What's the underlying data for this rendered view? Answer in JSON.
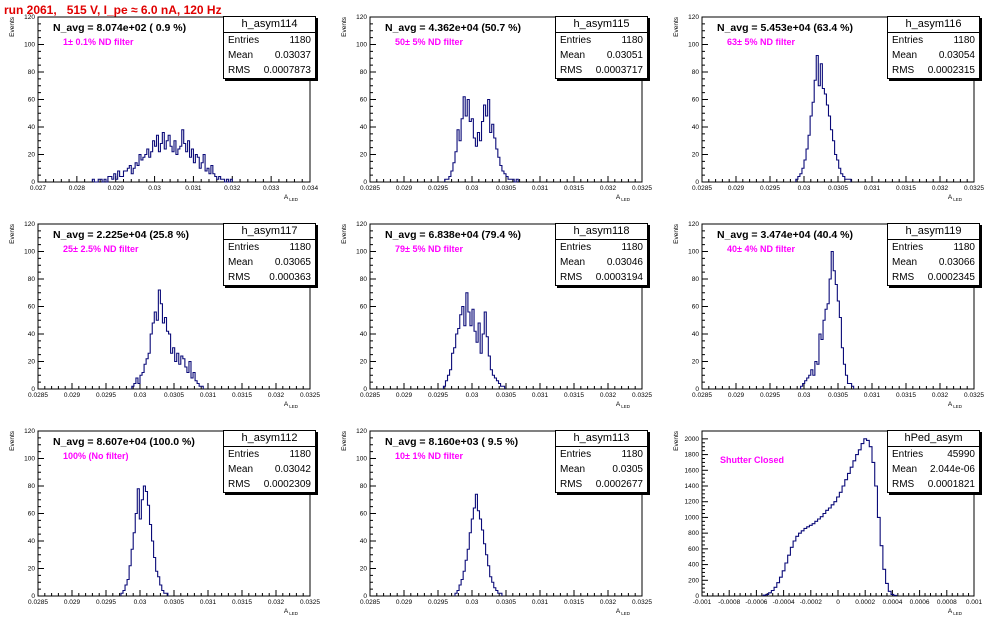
{
  "run_title": "run 2061,   515 V, I_pe ≈ 6.0 nA, 120 Hz",
  "ylabel": "Events",
  "xlabel": "A",
  "xlabel_sub": "LED",
  "stat_labels": {
    "entries": "Entries",
    "mean": "Mean",
    "rms": "RMS"
  },
  "chart_data": [
    {
      "type": "bar",
      "name": "h_asym114",
      "navg": "N_avg = 8.074e+02 ( 0.9 %)",
      "filter": "1± 0.1% ND filter",
      "entries": "1180",
      "mean": "0.03037",
      "rms": "0.0007873",
      "xlim": [
        0.027,
        0.034
      ],
      "xticks": [
        "0.027",
        "0.028",
        "0.029",
        "0.03",
        "0.031",
        "0.032",
        "0.033",
        "0.034"
      ],
      "ylim": [
        0,
        120
      ],
      "yticks": [
        "0",
        "20",
        "40",
        "60",
        "80",
        "100",
        "120"
      ],
      "bins": {
        "start": 0.0284,
        "width": 5e-05,
        "values": [
          2,
          0,
          0,
          2,
          2,
          0,
          2,
          0,
          4,
          4,
          2,
          6,
          2,
          8,
          4,
          4,
          8,
          8,
          10,
          12,
          6,
          10,
          14,
          12,
          20,
          16,
          18,
          20,
          24,
          18,
          22,
          30,
          26,
          34,
          22,
          28,
          36,
          24,
          30,
          34,
          26,
          22,
          30,
          20,
          24,
          26,
          38,
          28,
          22,
          30,
          18,
          24,
          14,
          20,
          18,
          10,
          14,
          20,
          8,
          10,
          6,
          12,
          6,
          4,
          2,
          4,
          2,
          2,
          0,
          2,
          0,
          2
        ]
      }
    },
    {
      "type": "bar",
      "name": "h_asym115",
      "navg": "N_avg = 4.362e+04 (50.7 %)",
      "filter": "50± 5% ND filter",
      "entries": "1180",
      "mean": "0.03051",
      "rms": "0.0003717",
      "xlim": [
        0.0285,
        0.0325
      ],
      "xticks": [
        "0.0285",
        "0.029",
        "0.0295",
        "0.03",
        "0.0305",
        "0.031",
        "0.0315",
        "0.032",
        "0.0325"
      ],
      "ylim": [
        0,
        120
      ],
      "yticks": [
        "0",
        "20",
        "40",
        "60",
        "80",
        "100",
        "120"
      ],
      "bins": {
        "start": 0.0296,
        "width": 3e-05,
        "values": [
          2,
          2,
          4,
          8,
          14,
          22,
          38,
          30,
          46,
          62,
          48,
          60,
          44,
          46,
          32,
          26,
          36,
          30,
          44,
          56,
          48,
          60,
          36,
          42,
          32,
          24,
          18,
          12,
          8,
          6,
          4,
          2,
          2,
          2,
          0,
          2
        ]
      }
    },
    {
      "type": "bar",
      "name": "h_asym116",
      "navg": "N_avg = 5.453e+04 (63.4 %)",
      "filter": "63± 5% ND filter",
      "entries": "1180",
      "mean": "0.03054",
      "rms": "0.0002315",
      "xlim": [
        0.0285,
        0.0325
      ],
      "xticks": [
        "0.0285",
        "0.029",
        "0.0295",
        "0.03",
        "0.0305",
        "0.031",
        "0.0315",
        "0.032",
        "0.0325"
      ],
      "ylim": [
        0,
        120
      ],
      "yticks": [
        "0",
        "20",
        "40",
        "60",
        "80",
        "100",
        "120"
      ],
      "bins": {
        "start": 0.02988,
        "width": 3e-05,
        "values": [
          2,
          4,
          6,
          10,
          16,
          24,
          34,
          48,
          58,
          74,
          92,
          70,
          86,
          68,
          64,
          56,
          48,
          38,
          30,
          20,
          16,
          10,
          6,
          4,
          2,
          2,
          2
        ]
      }
    },
    {
      "type": "bar",
      "name": "h_asym117",
      "navg": "N_avg = 2.225e+04 (25.8 %)",
      "filter": "25± 2.5% ND filter",
      "entries": "1180",
      "mean": "0.03065",
      "rms": "0.000363",
      "xlim": [
        0.0285,
        0.0325
      ],
      "xticks": [
        "0.0285",
        "0.029",
        "0.0295",
        "0.03",
        "0.0305",
        "0.031",
        "0.0315",
        "0.032",
        "0.0325"
      ],
      "ylim": [
        0,
        120
      ],
      "yticks": [
        "0",
        "20",
        "40",
        "60",
        "80",
        "100",
        "120"
      ],
      "bins": {
        "start": 0.02988,
        "width": 3e-05,
        "values": [
          2,
          4,
          8,
          4,
          10,
          12,
          18,
          22,
          26,
          40,
          48,
          56,
          50,
          72,
          62,
          48,
          52,
          42,
          40,
          26,
          30,
          20,
          26,
          18,
          24,
          22,
          16,
          12,
          20,
          8,
          12,
          6,
          4,
          2,
          2
        ]
      }
    },
    {
      "type": "bar",
      "name": "h_asym118",
      "navg": "N_avg = 6.838e+04 (79.4 %)",
      "filter": "79± 5% ND filter",
      "entries": "1180",
      "mean": "0.03046",
      "rms": "0.0003194",
      "xlim": [
        0.0285,
        0.0325
      ],
      "xticks": [
        "0.0285",
        "0.029",
        "0.0295",
        "0.03",
        "0.0305",
        "0.031",
        "0.0315",
        "0.032",
        "0.0325"
      ],
      "ylim": [
        0,
        120
      ],
      "yticks": [
        "0",
        "20",
        "40",
        "60",
        "80",
        "100",
        "120"
      ],
      "bins": {
        "start": 0.02958,
        "width": 3e-05,
        "values": [
          2,
          6,
          10,
          14,
          26,
          30,
          40,
          44,
          54,
          60,
          46,
          70,
          56,
          46,
          58,
          42,
          34,
          48,
          26,
          40,
          56,
          38,
          24,
          14,
          10,
          8,
          6,
          4,
          2,
          2
        ]
      }
    },
    {
      "type": "bar",
      "name": "h_asym119",
      "navg": "N_avg = 3.474e+04 (40.4 %)",
      "filter": "40± 4% ND filter",
      "entries": "1180",
      "mean": "0.03066",
      "rms": "0.0002345",
      "xlim": [
        0.0285,
        0.0325
      ],
      "xticks": [
        "0.0285",
        "0.029",
        "0.0295",
        "0.03",
        "0.0305",
        "0.031",
        "0.0315",
        "0.032",
        "0.0325"
      ],
      "ylim": [
        0,
        120
      ],
      "yticks": [
        "0",
        "20",
        "40",
        "60",
        "80",
        "100",
        "120"
      ],
      "bins": {
        "start": 0.02995,
        "width": 3e-05,
        "values": [
          2,
          4,
          6,
          8,
          10,
          14,
          10,
          20,
          18,
          40,
          36,
          50,
          58,
          62,
          80,
          100,
          86,
          76,
          64,
          52,
          30,
          18,
          10,
          4,
          4,
          2
        ]
      }
    },
    {
      "type": "bar",
      "name": "h_asym112",
      "navg": "N_avg = 8.607e+04 (100.0 %)",
      "filter": "100% (No filter)",
      "entries": "1180",
      "mean": "0.03042",
      "rms": "0.0002309",
      "xlim": [
        0.0285,
        0.0325
      ],
      "xticks": [
        "0.0285",
        "0.029",
        "0.0295",
        "0.03",
        "0.0305",
        "0.031",
        "0.0315",
        "0.032",
        "0.0325"
      ],
      "ylim": [
        0,
        120
      ],
      "yticks": [
        "0",
        "20",
        "40",
        "60",
        "80",
        "100",
        "120"
      ],
      "bins": {
        "start": 0.02972,
        "width": 3e-05,
        "values": [
          2,
          4,
          8,
          12,
          22,
          34,
          46,
          60,
          78,
          56,
          70,
          80,
          76,
          66,
          52,
          40,
          28,
          18,
          14,
          8,
          4,
          2,
          2
        ]
      }
    },
    {
      "type": "bar",
      "name": "h_asym113",
      "navg": "N_avg = 8.160e+03 ( 9.5 %)",
      "filter": "10± 1% ND filter",
      "entries": "1180",
      "mean": "0.0305",
      "rms": "0.0002677",
      "xlim": [
        0.0285,
        0.0325
      ],
      "xticks": [
        "0.0285",
        "0.029",
        "0.0295",
        "0.03",
        "0.0305",
        "0.031",
        "0.0315",
        "0.032",
        "0.0325"
      ],
      "ylim": [
        0,
        120
      ],
      "yticks": [
        "0",
        "20",
        "40",
        "60",
        "80",
        "100",
        "120"
      ],
      "bins": {
        "start": 0.02975,
        "width": 3e-05,
        "values": [
          2,
          4,
          8,
          12,
          18,
          26,
          34,
          46,
          56,
          64,
          74,
          62,
          56,
          48,
          38,
          30,
          22,
          14,
          10,
          6,
          4,
          2,
          2
        ]
      }
    },
    {
      "type": "bar",
      "name": "hPed_asym",
      "navg": "",
      "filter": "Shutter Closed",
      "entries": "45990",
      "mean": "2.044e-06",
      "rms": "0.0001821",
      "xlim": [
        -0.001,
        0.001
      ],
      "xticks": [
        "-0.001",
        "-0.0008",
        "-0.0006",
        "-0.0004",
        "-0.0002",
        "0",
        "0.0002",
        "0.0004",
        "0.0006",
        "0.0008",
        "0.001"
      ],
      "ylim": [
        0,
        2100
      ],
      "yticks": [
        "0",
        "200",
        "400",
        "600",
        "800",
        "1000",
        "1200",
        "1400",
        "1600",
        "1800",
        "2000"
      ],
      "bins": {
        "start": -0.00055,
        "width": 2e-05,
        "values": [
          10,
          20,
          40,
          70,
          110,
          170,
          240,
          320,
          420,
          520,
          620,
          700,
          760,
          800,
          830,
          860,
          880,
          900,
          920,
          950,
          980,
          1010,
          1050,
          1090,
          1120,
          1160,
          1200,
          1260,
          1320,
          1400,
          1480,
          1560,
          1640,
          1720,
          1800,
          1860,
          1940,
          2000,
          1980,
          1900,
          1700,
          1400,
          1000,
          640,
          340,
          160,
          60,
          20,
          8
        ]
      }
    }
  ]
}
